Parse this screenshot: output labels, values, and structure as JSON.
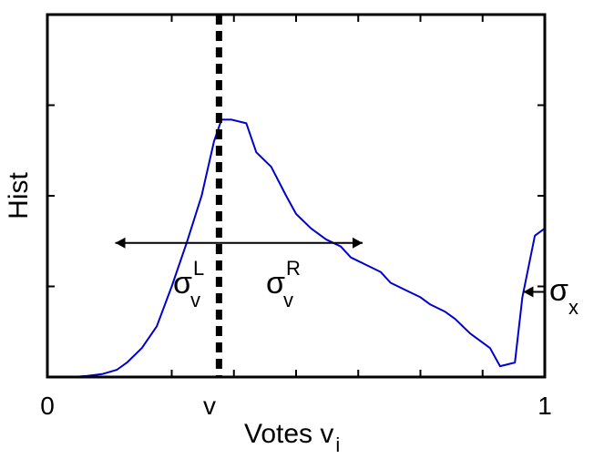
{
  "chart_data": {
    "type": "line",
    "xlabel": "Votes v",
    "xlabel_sub": "i",
    "ylabel": "Hist",
    "xlim": [
      0,
      1
    ],
    "x_tick_labels": [
      {
        "value": 0,
        "label": "0"
      },
      {
        "value": 0.345,
        "label": "v"
      },
      {
        "value": 1,
        "label": "1"
      }
    ],
    "x_tick_marks": [
      0.25,
      0.375,
      0.5,
      0.625,
      0.75,
      0.875
    ],
    "y_tick_marks": [
      0.25,
      0.5,
      0.75
    ],
    "ylim": [
      0,
      1
    ],
    "grid": false,
    "series": [
      {
        "color": "#0000cc",
        "x": [
          0.0,
          0.02,
          0.05,
          0.08,
          0.11,
          0.14,
          0.16,
          0.19,
          0.22,
          0.25,
          0.28,
          0.31,
          0.335,
          0.35,
          0.37,
          0.4,
          0.42,
          0.45,
          0.48,
          0.5,
          0.53,
          0.56,
          0.59,
          0.61,
          0.64,
          0.67,
          0.69,
          0.72,
          0.75,
          0.77,
          0.8,
          0.82,
          0.85,
          0.87,
          0.89,
          0.91,
          0.94,
          0.955,
          0.98,
          1.0
        ],
        "y": [
          0.0,
          0.0,
          0.0,
          0.003,
          0.008,
          0.02,
          0.04,
          0.08,
          0.14,
          0.25,
          0.37,
          0.5,
          0.65,
          0.71,
          0.71,
          0.7,
          0.62,
          0.58,
          0.5,
          0.45,
          0.41,
          0.38,
          0.36,
          0.33,
          0.31,
          0.29,
          0.26,
          0.24,
          0.22,
          0.2,
          0.18,
          0.16,
          0.12,
          0.1,
          0.08,
          0.03,
          0.04,
          0.22,
          0.39,
          0.41
        ]
      }
    ],
    "marker": {
      "x": 0.345,
      "style": "thick dashed vertical",
      "label": "v"
    },
    "annotations": [
      {
        "label": "σ",
        "superscript": "L",
        "subscript": "v",
        "arrow_from": 0.345,
        "arrow_to": 0.25
      },
      {
        "label": "σ",
        "superscript": "R",
        "subscript": "v",
        "arrow_from": 0.345,
        "arrow_to": 0.5
      },
      {
        "label": "σ",
        "subscript": "x",
        "arrow_from": 1.0,
        "arrow_to": 0.955
      }
    ]
  }
}
